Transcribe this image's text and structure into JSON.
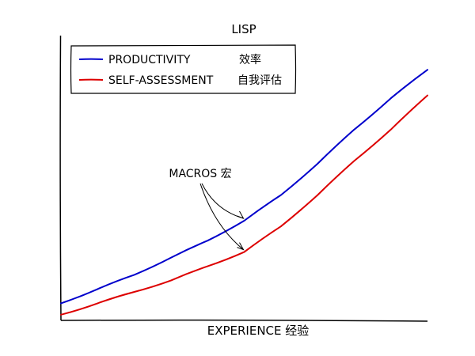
{
  "chart_data": {
    "type": "line",
    "title": "LISP",
    "xlabel": "EXPERIENCE 经验",
    "ylabel": "",
    "grid": false,
    "legend_position": "top-left",
    "ticks": "none",
    "series": [
      {
        "name": "PRODUCTIVITY",
        "name_cn": "效率",
        "color": "#0000cc",
        "points": [
          [
            0,
            0.06
          ],
          [
            0.1,
            0.11
          ],
          [
            0.2,
            0.16
          ],
          [
            0.3,
            0.22
          ],
          [
            0.4,
            0.28
          ],
          [
            0.5,
            0.35
          ],
          [
            0.6,
            0.44
          ],
          [
            0.7,
            0.55
          ],
          [
            0.8,
            0.67
          ],
          [
            0.9,
            0.78
          ],
          [
            1.0,
            0.88
          ]
        ]
      },
      {
        "name": "SELF-ASSESSMENT",
        "name_cn": "自我评估",
        "color": "#dd0000",
        "points": [
          [
            0,
            0.02
          ],
          [
            0.1,
            0.06
          ],
          [
            0.2,
            0.1
          ],
          [
            0.3,
            0.14
          ],
          [
            0.4,
            0.19
          ],
          [
            0.5,
            0.24
          ],
          [
            0.6,
            0.33
          ],
          [
            0.7,
            0.44
          ],
          [
            0.8,
            0.56
          ],
          [
            0.9,
            0.67
          ],
          [
            1.0,
            0.79
          ]
        ]
      }
    ],
    "annotations": [
      {
        "text": "MACROS 宏",
        "targets": [
          [
            0.5,
            0.35
          ],
          [
            0.5,
            0.24
          ]
        ]
      }
    ]
  }
}
